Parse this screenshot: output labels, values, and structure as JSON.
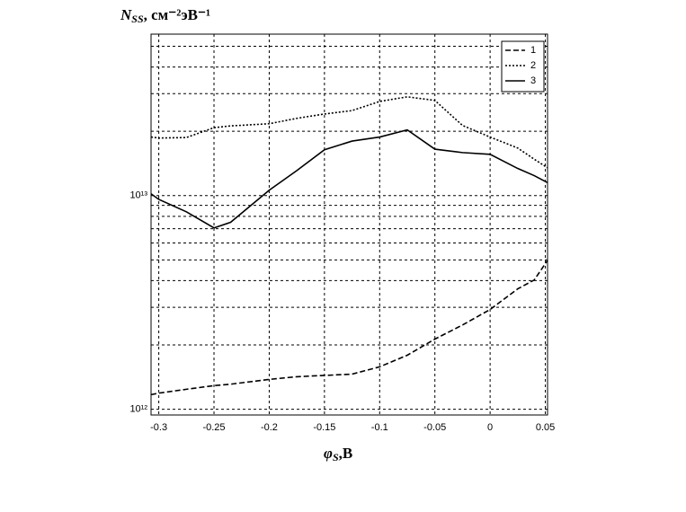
{
  "chart_data": {
    "type": "line",
    "ylabel": {
      "symbol": "N",
      "sub": "SS",
      "unit": ", см⁻²эВ⁻¹"
    },
    "xlabel": {
      "symbol": "φ",
      "sub": "S",
      "unit": ",В"
    },
    "log_y": true,
    "grid": true,
    "legend": "top-right",
    "xlim": [
      -0.307,
      0.052
    ],
    "ylim": [
      940000000000,
      57000000000000
    ],
    "xticks": [
      -0.3,
      -0.25,
      -0.2,
      -0.15,
      -0.1,
      -0.05,
      0,
      0.05
    ],
    "yticks": [
      {
        "value": 1000000000000.0,
        "label": "10¹²"
      },
      {
        "value": 10000000000000.0,
        "label": "10¹³"
      }
    ],
    "ygrid": [
      2000000000000.0,
      3000000000000.0,
      4000000000000.0,
      5000000000000.0,
      6000000000000.0,
      7000000000000.0,
      8000000000000.0,
      9000000000000.0,
      20000000000000.0,
      30000000000000.0,
      40000000000000.0,
      50000000000000.0
    ],
    "x": [
      -0.307,
      -0.3,
      -0.275,
      -0.25,
      -0.235,
      -0.2,
      -0.175,
      -0.15,
      -0.125,
      -0.1,
      -0.075,
      -0.05,
      -0.025,
      0,
      0.025,
      0.04,
      0.052
    ],
    "series": [
      {
        "name": "1",
        "color": "#000000",
        "dash": "dashed",
        "values": [
          1170000000000.0,
          1190000000000.0,
          1240000000000.0,
          1290000000000.0,
          1310000000000.0,
          1380000000000.0,
          1420000000000.0,
          1440000000000.0,
          1460000000000.0,
          1580000000000.0,
          1790000000000.0,
          2130000000000.0,
          2480000000000.0,
          2930000000000.0,
          3660000000000.0,
          4030000000000.0,
          4980000000000.0
        ]
      },
      {
        "name": "2",
        "color": "#000000",
        "dash": "dotted",
        "values": [
          18800000000000.0,
          18600000000000.0,
          18700000000000.0,
          20800000000000.0,
          21200000000000.0,
          21700000000000.0,
          23000000000000.0,
          24100000000000.0,
          25000000000000.0,
          27600000000000.0,
          29000000000000.0,
          27900000000000.0,
          21300000000000.0,
          18800000000000.0,
          16700000000000.0,
          14800000000000.0,
          13500000000000.0
        ]
      },
      {
        "name": "3",
        "color": "#000000",
        "dash": "solid",
        "values": [
          10200000000000.0,
          9600000000000.0,
          8400000000000.0,
          7060000000000.0,
          7500000000000.0,
          10600000000000.0,
          13100000000000.0,
          16400000000000.0,
          18000000000000.0,
          18800000000000.0,
          20300000000000.0,
          16500000000000.0,
          15900000000000.0,
          15600000000000.0,
          13400000000000.0,
          12400000000000.0,
          11500000000000.0
        ]
      }
    ]
  }
}
